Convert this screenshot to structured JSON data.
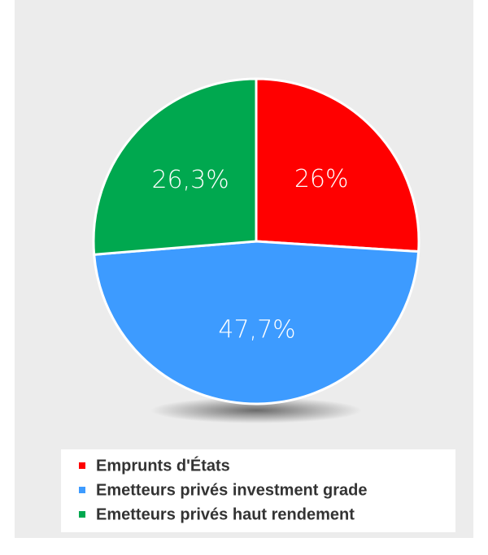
{
  "chart_data": {
    "type": "pie",
    "categories": [
      "Emprunts d'États",
      "Emetteurs privés investment grade",
      "Emetteurs privés haut rendement"
    ],
    "values": [
      26,
      47.7,
      26.3
    ],
    "value_labels": [
      "26%",
      "47,7%",
      "26,3%"
    ],
    "colors": [
      "#ff0000",
      "#3d9bff",
      "#00a84f"
    ],
    "legend": "bottom"
  }
}
